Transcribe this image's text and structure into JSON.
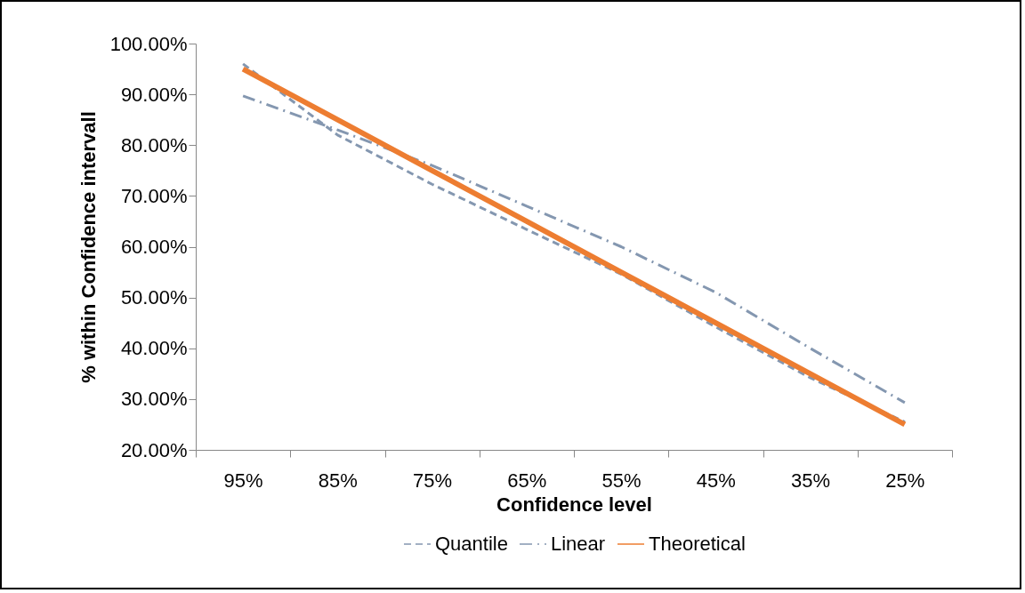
{
  "chart_data": {
    "type": "line",
    "xlabel": "Confidence level",
    "ylabel": "% within Confidence intervall",
    "categories": [
      "95%",
      "85%",
      "75%",
      "65%",
      "55%",
      "45%",
      "35%",
      "25%"
    ],
    "series": [
      {
        "name": "Quantile",
        "color": "#8497b0",
        "line_style": "dashed",
        "values": [
          96,
          82,
          72.3,
          63.4,
          54.6,
          44.2,
          34.2,
          25.5
        ]
      },
      {
        "name": "Linear",
        "color": "#8497b0",
        "line_style": "dashdot",
        "values": [
          89.7,
          83,
          76,
          68,
          60,
          51,
          40,
          29.3
        ]
      },
      {
        "name": "Theoretical",
        "color": "#ed7d31",
        "line_style": "solid",
        "values": [
          95,
          85,
          75,
          65,
          55,
          45,
          35,
          25
        ]
      }
    ],
    "ylim": [
      20,
      100
    ],
    "yticks": [
      {
        "value": 20,
        "label": "20.00%"
      },
      {
        "value": 30,
        "label": "30.00%"
      },
      {
        "value": 40,
        "label": "40.00%"
      },
      {
        "value": 50,
        "label": "50.00%"
      },
      {
        "value": 60,
        "label": "60.00%"
      },
      {
        "value": 70,
        "label": "70.00%"
      },
      {
        "value": 80,
        "label": "80.00%"
      },
      {
        "value": 90,
        "label": "90.00%"
      },
      {
        "value": 100,
        "label": "100.00%"
      }
    ],
    "grid": false,
    "legend": "bottom",
    "marker": "none"
  }
}
